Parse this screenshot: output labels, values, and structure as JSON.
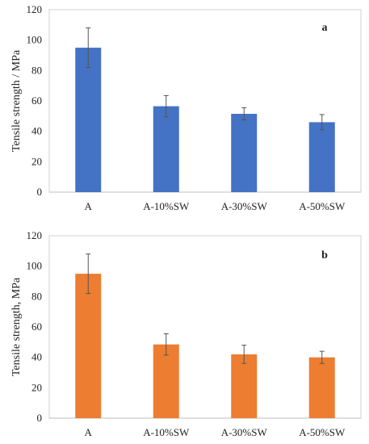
{
  "chart_data": [
    {
      "type": "bar",
      "panel_label": "a",
      "categories": [
        "A",
        "A-10%SW",
        "A-30%SW",
        "A-50%SW"
      ],
      "values": [
        95,
        56.5,
        51.5,
        46
      ],
      "errors": [
        13,
        7,
        4,
        5
      ],
      "ylabel": "Tensile strength / MPa",
      "xlabel": "",
      "ylim": [
        0,
        120
      ],
      "yticks": [
        "0",
        "20",
        "40",
        "60",
        "80",
        "100",
        "120"
      ],
      "grid": false,
      "bar_color": "#4472c4"
    },
    {
      "type": "bar",
      "panel_label": "b",
      "categories": [
        "A",
        "A-10%SW",
        "A-30%SW",
        "A-50%SW"
      ],
      "values": [
        95,
        48.5,
        42,
        40
      ],
      "errors": [
        13,
        7,
        6,
        4
      ],
      "ylabel": "Tensile strength,  MPa",
      "xlabel": "",
      "ylim": [
        0,
        120
      ],
      "yticks": [
        "0",
        "20",
        "40",
        "60",
        "80",
        "100",
        "120"
      ],
      "grid": false,
      "bar_color": "#ed7d31"
    }
  ]
}
